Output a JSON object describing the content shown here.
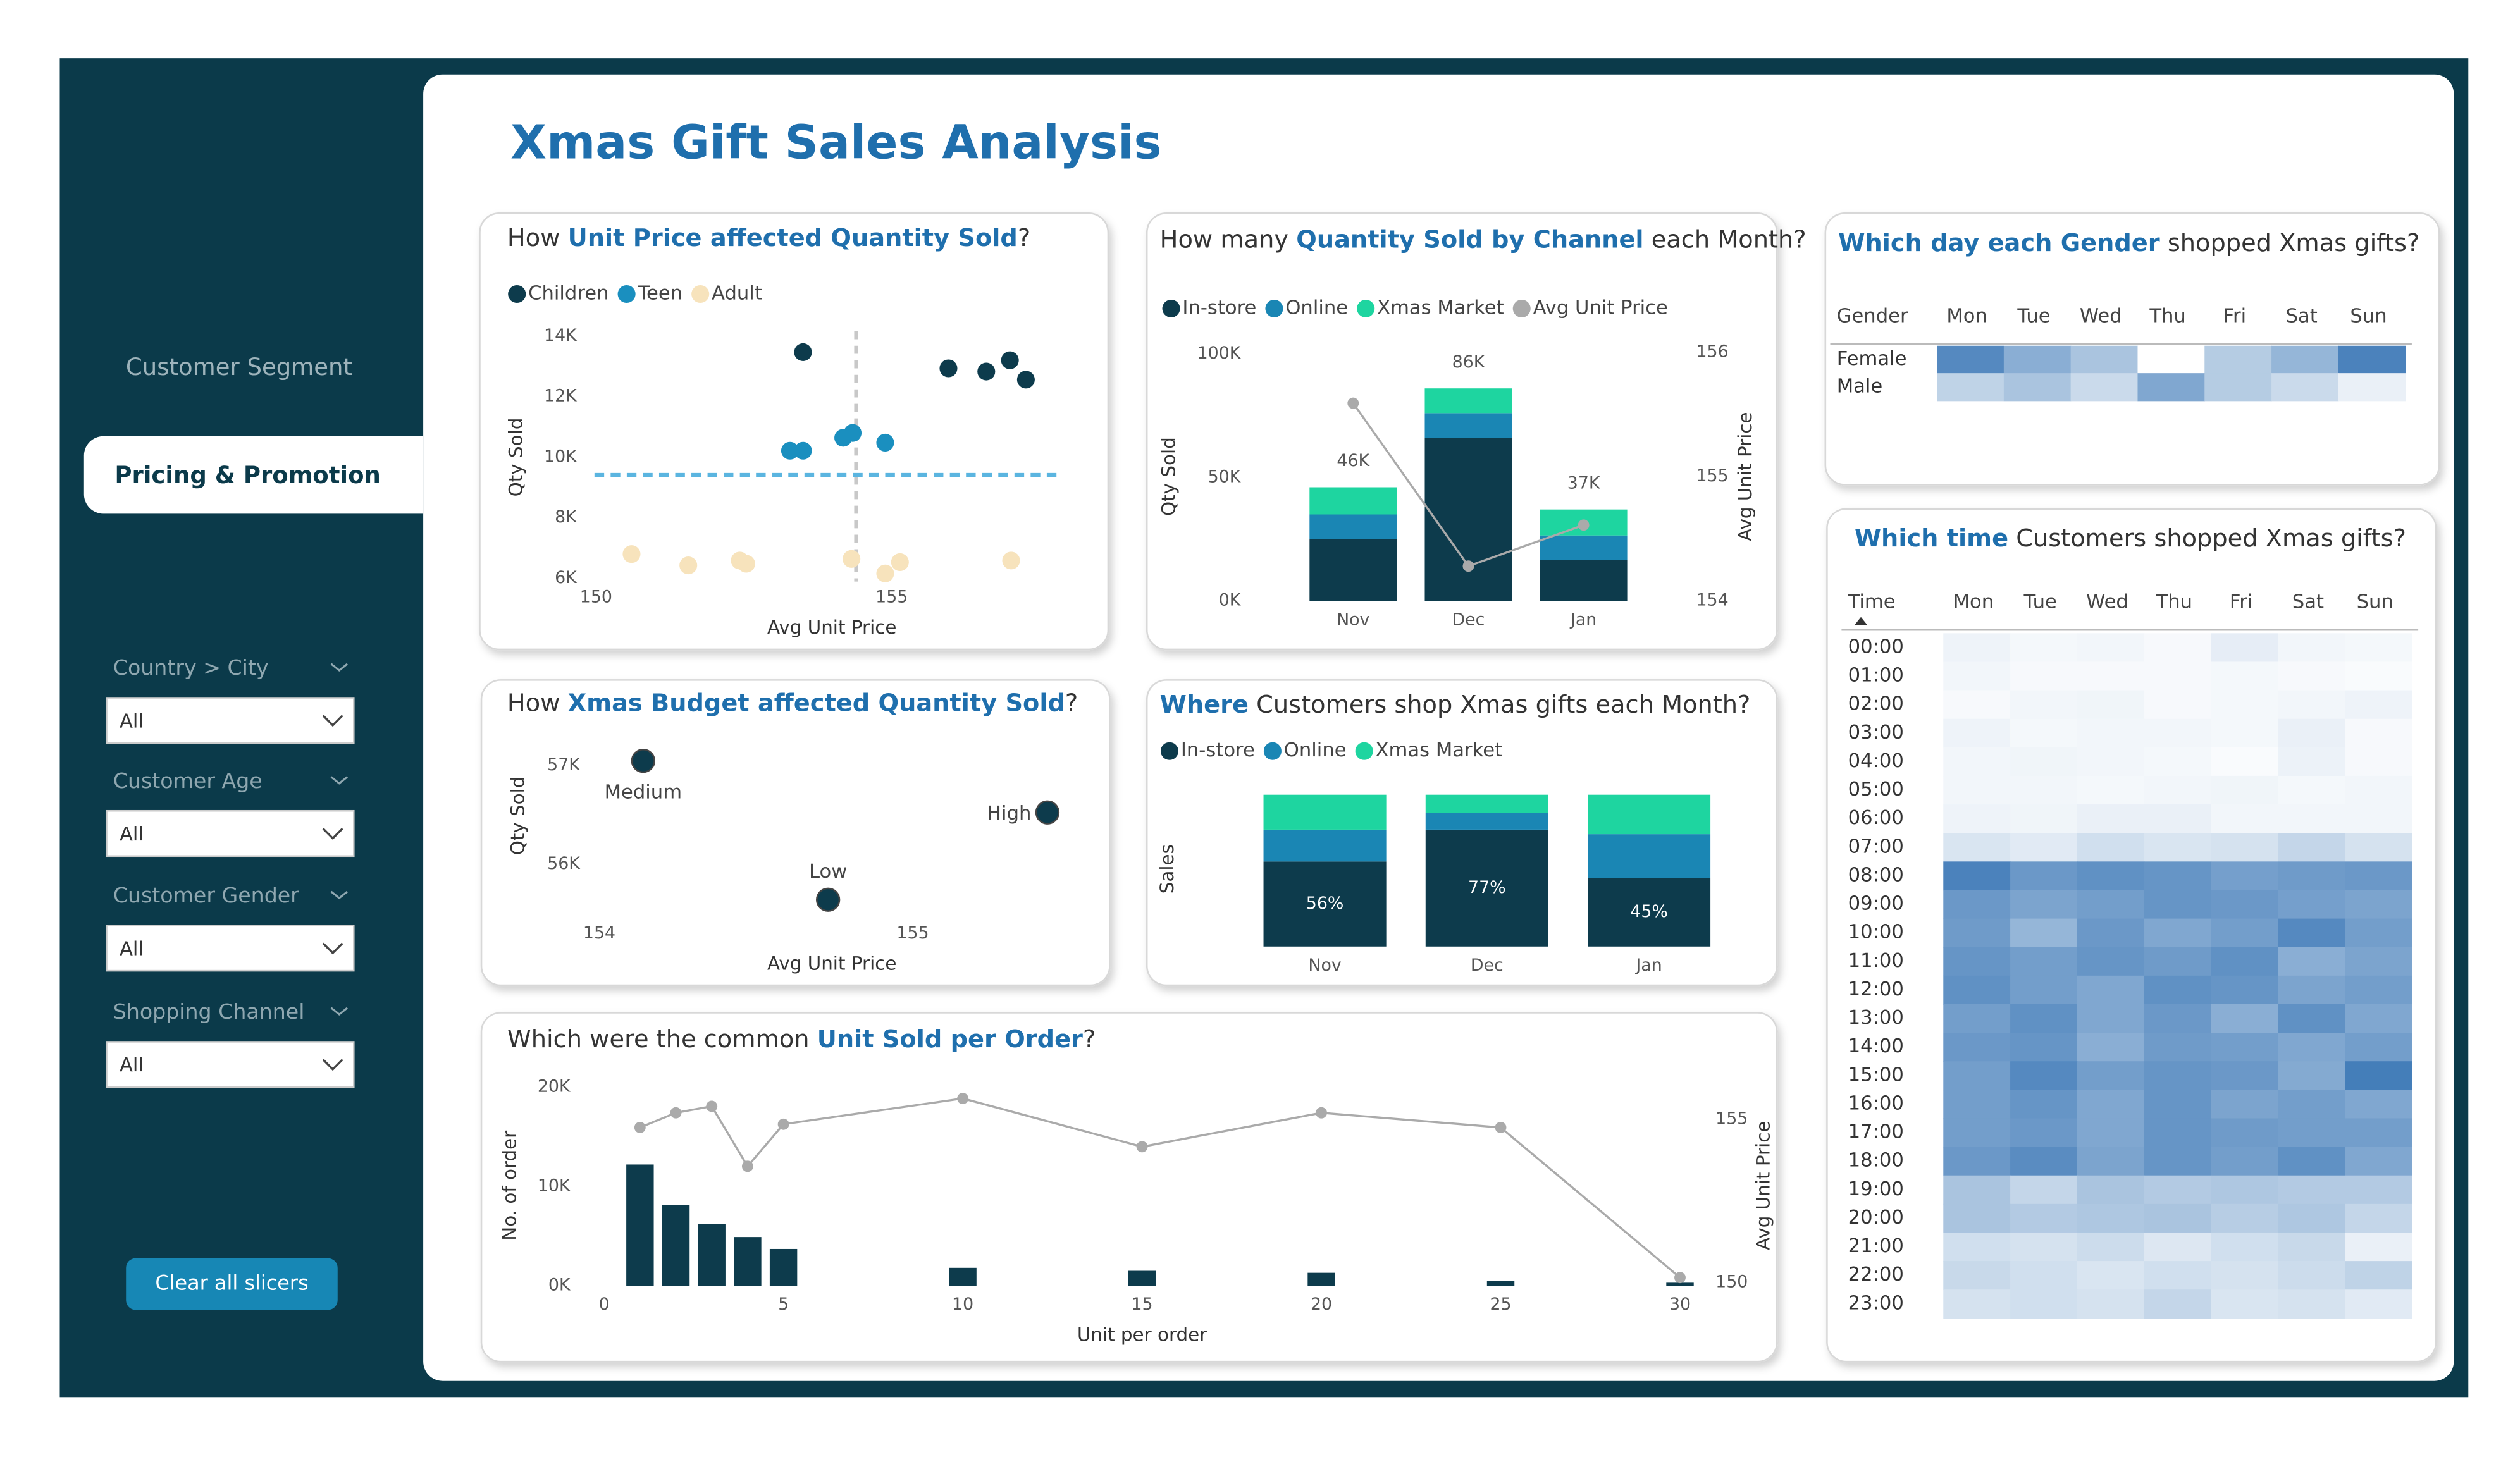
{
  "title": "Xmas Gift Sales Analysis",
  "sidebar": {
    "tabs": [
      "Customer Segment",
      "Pricing & Promotion"
    ],
    "active_tab": 1,
    "filters": [
      {
        "label": "Country > City",
        "value": "All"
      },
      {
        "label": "Customer Age",
        "value": "All"
      },
      {
        "label": "Customer Gender",
        "value": "All"
      },
      {
        "label": "Shopping Channel",
        "value": "All"
      }
    ],
    "button": "Clear all slicers"
  },
  "chart_data": [
    {
      "type": "scatter",
      "title": [
        "How ",
        "Unit Price affected Quantity Sold",
        "?"
      ],
      "highlight": 1,
      "x_label": "Avg Unit Price",
      "y_label": "Qty Sold",
      "xlim": [
        150,
        158
      ],
      "ylim": [
        6000,
        14000
      ],
      "xticks": [
        150,
        155
      ],
      "yticks": [
        {
          "value": 6000,
          "label": "6K"
        },
        {
          "value": 8000,
          "label": "8K"
        },
        {
          "value": 10000,
          "label": "10K"
        },
        {
          "value": 12000,
          "label": "12K"
        },
        {
          "value": 14000,
          "label": "14K"
        }
      ],
      "series": [
        {
          "name": "Children",
          "color": "#0d3b4c",
          "x": [
            153.5,
            155.96,
            156.6,
            157.0,
            157.27
          ],
          "values": [
            13467,
            12933,
            12827,
            13200,
            12560
          ]
        },
        {
          "name": "Teen",
          "color": "#1a8fbf",
          "x": [
            153.28,
            153.5,
            154.18,
            154.34,
            154.89
          ],
          "values": [
            10213,
            10213,
            10640,
            10800,
            10480
          ]
        },
        {
          "name": "Adult",
          "color": "#f7e3bc",
          "x": [
            150.6,
            151.56,
            152.43,
            152.54,
            154.32,
            154.89,
            155.14,
            157.02
          ],
          "values": [
            6800,
            6427,
            6587,
            6480,
            6640,
            6160,
            6533,
            6587
          ]
        }
      ],
      "ref_x": 154.4,
      "ref_y": 9413
    },
    {
      "type": "combo",
      "title": [
        "How many ",
        "Quantity Sold by Channel",
        " each Month?"
      ],
      "highlight": 1,
      "y_label": "Qty Sold",
      "y2_label": "Avg Unit Price",
      "categories": [
        "Nov",
        "Dec",
        "Jan"
      ],
      "ylim": [
        0,
        100000
      ],
      "yticks": [
        {
          "value": 0,
          "label": "0K"
        },
        {
          "value": 50000,
          "label": "50K"
        },
        {
          "value": 100000,
          "label": "100K"
        }
      ],
      "y2lim": [
        154,
        156
      ],
      "y2ticks": [
        154,
        155,
        156
      ],
      "series": [
        {
          "name": "In-store",
          "color": "#0d3b4c",
          "values": [
            25000,
            66000,
            16500
          ]
        },
        {
          "name": "Online",
          "color": "#1a86b4",
          "values": [
            10000,
            10000,
            10000
          ]
        },
        {
          "name": "Xmas Market",
          "color": "#1ed5a0",
          "values": [
            11000,
            10000,
            10500
          ]
        },
        {
          "name": "Avg Unit Price",
          "color": "#aaaaaa",
          "axis": "y2",
          "values": [
            155.59,
            154.28,
            154.61
          ]
        }
      ],
      "totals": [
        46000,
        86000,
        37000
      ],
      "total_labels": [
        "46K",
        "86K",
        "37K"
      ]
    },
    {
      "type": "heatmap",
      "title": [
        "Which day each Gender",
        " shopped Xmas gifts?"
      ],
      "highlight": 0,
      "row_header": "Gender",
      "columns": [
        "Mon",
        "Tue",
        "Wed",
        "Thu",
        "Fri",
        "Sat",
        "Sun"
      ],
      "rows": [
        "Female",
        "Male"
      ],
      "zlim": [
        0,
        100
      ],
      "color": "#2b6cb0",
      "values": [
        [
          80,
          55,
          40,
          0,
          35,
          50,
          85
        ],
        [
          30,
          40,
          25,
          60,
          35,
          25,
          10
        ]
      ]
    },
    {
      "type": "scatter",
      "title": [
        "How ",
        "Xmas Budget affected Quantity Sold",
        "?"
      ],
      "highlight": 1,
      "x_label": "Avg Unit Price",
      "y_label": "Qty Sold",
      "xlim": [
        153.8,
        155.5
      ],
      "ylim": [
        55500,
        57200
      ],
      "xticks": [
        154,
        155
      ],
      "yticks": [
        {
          "value": 56000,
          "label": "56K"
        },
        {
          "value": 57000,
          "label": "57K"
        }
      ],
      "series": [
        {
          "color": "#0d3b4c",
          "labels": [
            "Medium",
            "High",
            "Low"
          ],
          "x": [
            154.14,
            155.43,
            154.73
          ],
          "values": [
            57049,
            56525,
            55639
          ]
        }
      ]
    },
    {
      "type": "stacked_percent",
      "title": [
        "Where",
        " Customers shop Xmas gifts each Month?"
      ],
      "highlight": 0,
      "y_label": "Sales",
      "categories": [
        "Nov",
        "Dec",
        "Jan"
      ],
      "ylim": [
        0,
        100
      ],
      "series": [
        {
          "name": "In-store",
          "color": "#0d3b4c",
          "values": [
            56,
            77,
            45
          ],
          "value_labels": [
            "56%",
            "77%",
            "45%"
          ]
        },
        {
          "name": "Online",
          "color": "#1a86b4",
          "values": [
            21,
            11,
            29
          ]
        },
        {
          "name": "Xmas Market",
          "color": "#1ed5a0",
          "values": [
            23,
            12,
            26
          ]
        }
      ]
    },
    {
      "type": "combo_numeric",
      "title": [
        "Which were the common ",
        "Unit Sold per Order",
        "?"
      ],
      "highlight": 1,
      "x_label": "Unit per order",
      "y_label": "No. of order",
      "y2_label": "Avg Unit Price",
      "xlim": [
        0,
        30
      ],
      "xticks": [
        0,
        5,
        10,
        15,
        20,
        25,
        30
      ],
      "ylim": [
        0,
        20000
      ],
      "yticks": [
        {
          "value": 0,
          "label": "0K"
        },
        {
          "value": 10000,
          "label": "10K"
        },
        {
          "value": 20000,
          "label": "20K"
        }
      ],
      "y2lim": [
        150,
        155
      ],
      "y2ticks": [
        150,
        155
      ],
      "x": [
        1,
        2,
        3,
        4,
        5,
        10,
        15,
        20,
        25,
        30
      ],
      "series": [
        {
          "color": "#0d3b4c",
          "values": [
            12200,
            8100,
            6200,
            4900,
            3700,
            1800,
            1500,
            1300,
            500,
            300
          ]
        },
        {
          "color": "#aaaaaa",
          "axis": "y2",
          "values": [
            154.75,
            155.2,
            155.4,
            153.56,
            154.85,
            155.64,
            154.16,
            155.2,
            154.75,
            150.15
          ]
        }
      ]
    },
    {
      "type": "heatmap",
      "title": [
        "Which time",
        " Customers shopped Xmas gifts?"
      ],
      "highlight": 0,
      "row_header": "Time",
      "columns": [
        "Mon",
        "Tue",
        "Wed",
        "Thu",
        "Fri",
        "Sat",
        "Sun"
      ],
      "rows": [
        "00:00",
        "01:00",
        "02:00",
        "03:00",
        "04:00",
        "05:00",
        "06:00",
        "07:00",
        "08:00",
        "09:00",
        "10:00",
        "11:00",
        "12:00",
        "13:00",
        "14:00",
        "15:00",
        "16:00",
        "17:00",
        "18:00",
        "19:00",
        "20:00",
        "21:00",
        "22:00",
        "23:00"
      ],
      "zlim": [
        0,
        100
      ],
      "color": "#2b6cb0",
      "values": [
        [
          8,
          5,
          6,
          4,
          12,
          6,
          5
        ],
        [
          6,
          4,
          4,
          4,
          5,
          4,
          3
        ],
        [
          4,
          6,
          7,
          4,
          5,
          6,
          8
        ],
        [
          8,
          5,
          6,
          6,
          5,
          10,
          4
        ],
        [
          6,
          7,
          6,
          5,
          3,
          9,
          4
        ],
        [
          6,
          6,
          5,
          6,
          7,
          5,
          6
        ],
        [
          8,
          7,
          10,
          10,
          6,
          6,
          6
        ],
        [
          18,
          14,
          22,
          18,
          20,
          28,
          20
        ],
        [
          85,
          70,
          75,
          72,
          65,
          68,
          70
        ],
        [
          70,
          62,
          66,
          72,
          70,
          65,
          62
        ],
        [
          68,
          50,
          70,
          60,
          66,
          80,
          66
        ],
        [
          72,
          66,
          72,
          68,
          75,
          55,
          62
        ],
        [
          75,
          66,
          60,
          75,
          72,
          62,
          66
        ],
        [
          66,
          75,
          60,
          70,
          55,
          75,
          60
        ],
        [
          70,
          72,
          55,
          68,
          66,
          60,
          66
        ],
        [
          66,
          80,
          66,
          72,
          70,
          58,
          88
        ],
        [
          66,
          72,
          60,
          72,
          62,
          66,
          60
        ],
        [
          66,
          70,
          60,
          72,
          68,
          66,
          66
        ],
        [
          70,
          78,
          62,
          72,
          66,
          75,
          60
        ],
        [
          40,
          28,
          40,
          36,
          38,
          36,
          36
        ],
        [
          40,
          36,
          38,
          40,
          34,
          38,
          28
        ],
        [
          22,
          20,
          24,
          16,
          22,
          26,
          10
        ],
        [
          26,
          22,
          18,
          22,
          20,
          24,
          30
        ],
        [
          20,
          22,
          20,
          28,
          18,
          20,
          14
        ]
      ]
    }
  ]
}
